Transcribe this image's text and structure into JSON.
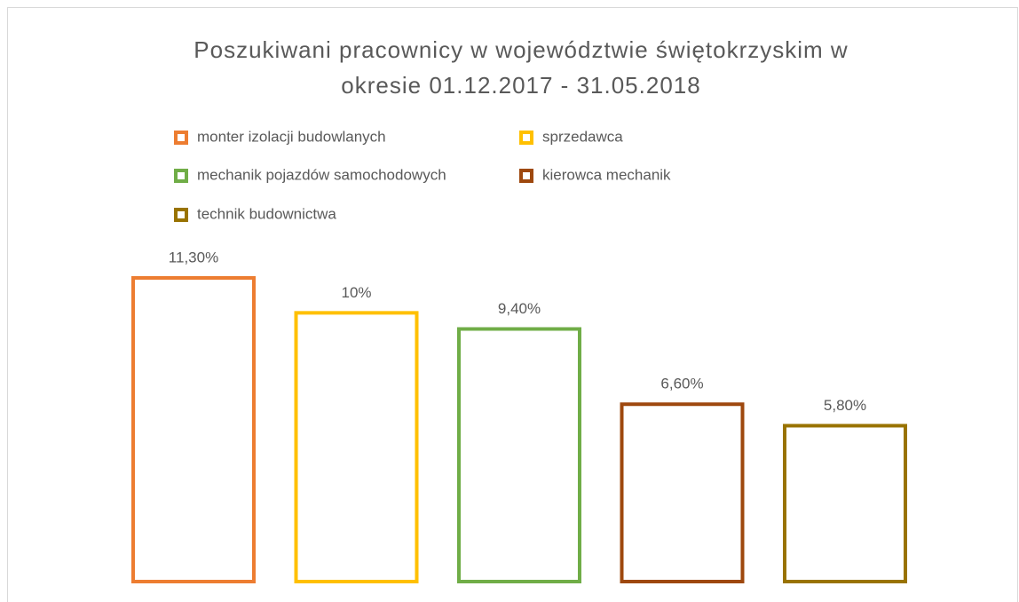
{
  "chart_data": {
    "type": "bar",
    "title": [
      "Poszukiwani pracownicy w województwie świętokrzyskim w",
      "okresie 01.12.2017 - 31.05.2018"
    ],
    "categories": [
      "monter izolacji budowlanych",
      "sprzedawca",
      "mechanik pojazdów samochodowych",
      "kierowca mechanik",
      "technik budownictwa"
    ],
    "values": [
      11.3,
      10,
      9.4,
      6.6,
      5.8
    ],
    "value_labels": [
      "11,30%",
      "10%",
      "9,40%",
      "6,60%",
      "5,80%"
    ],
    "colors": [
      "#ed7d31",
      "#ffc000",
      "#70ad47",
      "#9e480e",
      "#997300"
    ]
  }
}
